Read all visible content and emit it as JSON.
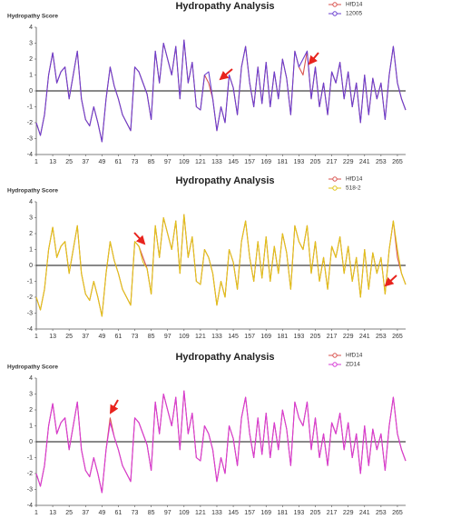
{
  "chart_data": [
    {
      "type": "line",
      "title": "Hydropathy Analysis",
      "y_label": "Hydropathy Score",
      "x": [
        1,
        4,
        7,
        10,
        13,
        16,
        19,
        22,
        25,
        28,
        31,
        34,
        37,
        40,
        43,
        46,
        49,
        52,
        55,
        58,
        61,
        64,
        67,
        70,
        73,
        76,
        79,
        82,
        85,
        88,
        91,
        94,
        97,
        100,
        103,
        106,
        109,
        112,
        115,
        118,
        121,
        124,
        127,
        130,
        133,
        136,
        139,
        142,
        145,
        148,
        151,
        154,
        157,
        160,
        163,
        166,
        169,
        172,
        175,
        178,
        181,
        184,
        187,
        190,
        193,
        196,
        199,
        202,
        205,
        208,
        211,
        214,
        217,
        220,
        223,
        226,
        229,
        232,
        235,
        238,
        241,
        244,
        247,
        250,
        253,
        256,
        259,
        262,
        265,
        268,
        271
      ],
      "xlim": [
        1,
        271
      ],
      "xticks": [
        1,
        13,
        25,
        37,
        49,
        61,
        73,
        85,
        97,
        109,
        121,
        133,
        145,
        157,
        169,
        181,
        193,
        205,
        217,
        229,
        241,
        253,
        265
      ],
      "ylim": [
        -4,
        4
      ],
      "yticks": [
        -4,
        -3,
        -2,
        -1,
        0,
        1,
        2,
        3,
        4
      ],
      "series": [
        {
          "name": "HfD14",
          "color": "#d9534f",
          "values": [
            -2,
            -2.8,
            -1.5,
            1,
            2.4,
            0.5,
            1.2,
            1.5,
            -0.5,
            1,
            2.5,
            -0.5,
            -1.8,
            -2.2,
            -1,
            -2,
            -3.2,
            -0.5,
            1.5,
            0.3,
            -0.5,
            -1.5,
            -2,
            -2.5,
            1.5,
            1.2,
            0.5,
            -0.2,
            -1.8,
            2.5,
            0.5,
            3,
            2,
            1,
            2.8,
            -0.5,
            3.2,
            0.5,
            1.8,
            -1,
            -1.2,
            1,
            0.5,
            -0.5,
            -2.5,
            -1,
            -2,
            1,
            0.2,
            -1.5,
            1.5,
            2.8,
            0.5,
            -1,
            1.5,
            -0.8,
            1.8,
            -1,
            1.2,
            -0.5,
            2,
            0.8,
            -1.5,
            2.5,
            1.5,
            1,
            2.5,
            -0.5,
            1.5,
            -1,
            0.5,
            -1.5,
            1.2,
            0.5,
            1.8,
            -0.5,
            1.2,
            -1,
            0.5,
            -2,
            1,
            -1.5,
            0.8,
            -0.5,
            0.5,
            -1.8,
            1,
            2.8,
            0.5,
            -0.5,
            -1.2
          ]
        },
        {
          "name": "12005",
          "color": "#6a3fd0",
          "values": [
            -2,
            -2.8,
            -1.5,
            1,
            2.4,
            0.5,
            1.2,
            1.5,
            -0.5,
            1,
            2.5,
            -0.5,
            -1.8,
            -2.2,
            -1,
            -2,
            -3.2,
            -0.5,
            1.5,
            0.3,
            -0.5,
            -1.5,
            -2,
            -2.5,
            1.5,
            1.2,
            0.5,
            -0.2,
            -1.8,
            2.5,
            0.5,
            3,
            2,
            1,
            2.8,
            -0.5,
            3.2,
            0.5,
            1.8,
            -1,
            -1.2,
            1,
            1.2,
            -0.5,
            -2.5,
            -1,
            -2,
            1,
            0.2,
            -1.5,
            1.5,
            2.8,
            0.5,
            -1,
            1.5,
            -0.8,
            1.8,
            -1,
            1.2,
            -0.5,
            2,
            0.8,
            -1.5,
            2.5,
            1.5,
            2,
            2.5,
            -0.5,
            1.5,
            -1,
            0.5,
            -1.5,
            1.2,
            0.5,
            1.8,
            -0.5,
            1.2,
            -1,
            0.5,
            -2,
            1,
            -1.5,
            0.8,
            -0.5,
            0.5,
            -1.8,
            1,
            2.8,
            0.5,
            -0.5,
            -1.2
          ]
        }
      ]
    },
    {
      "type": "line",
      "title": "Hydropathy Analysis",
      "y_label": "Hydropathy Score",
      "x": [
        1,
        4,
        7,
        10,
        13,
        16,
        19,
        22,
        25,
        28,
        31,
        34,
        37,
        40,
        43,
        46,
        49,
        52,
        55,
        58,
        61,
        64,
        67,
        70,
        73,
        76,
        79,
        82,
        85,
        88,
        91,
        94,
        97,
        100,
        103,
        106,
        109,
        112,
        115,
        118,
        121,
        124,
        127,
        130,
        133,
        136,
        139,
        142,
        145,
        148,
        151,
        154,
        157,
        160,
        163,
        166,
        169,
        172,
        175,
        178,
        181,
        184,
        187,
        190,
        193,
        196,
        199,
        202,
        205,
        208,
        211,
        214,
        217,
        220,
        223,
        226,
        229,
        232,
        235,
        238,
        241,
        244,
        247,
        250,
        253,
        256,
        259,
        262,
        265,
        268,
        271
      ],
      "xlim": [
        1,
        271
      ],
      "xticks": [
        1,
        13,
        25,
        37,
        49,
        61,
        73,
        85,
        97,
        109,
        121,
        133,
        145,
        157,
        169,
        181,
        193,
        205,
        217,
        229,
        241,
        253,
        265
      ],
      "ylim": [
        -4,
        4
      ],
      "yticks": [
        -4,
        -3,
        -2,
        -1,
        0,
        1,
        2,
        3,
        4
      ],
      "series": [
        {
          "name": "HfD14",
          "color": "#d9534f",
          "values": [
            -2,
            -2.8,
            -1.5,
            1,
            2.4,
            0.5,
            1.2,
            1.5,
            -0.5,
            1,
            2.5,
            -0.5,
            -1.8,
            -2.2,
            -1,
            -2,
            -3.2,
            -0.5,
            1.5,
            0.3,
            -0.5,
            -1.5,
            -2,
            -2.5,
            1.5,
            1.2,
            0.5,
            -0.2,
            -1.8,
            2.5,
            0.5,
            3,
            2,
            1,
            2.8,
            -0.5,
            3.2,
            0.5,
            1.8,
            -1,
            -1.2,
            1,
            0.5,
            -0.5,
            -2.5,
            -1,
            -2,
            1,
            0.2,
            -1.5,
            1.5,
            2.8,
            0.5,
            -1,
            1.5,
            -0.8,
            1.8,
            -1,
            1.2,
            -0.5,
            2,
            0.8,
            -1.5,
            2.5,
            1.5,
            1,
            2.5,
            -0.5,
            1.5,
            -1,
            0.5,
            -1.5,
            1.2,
            0.5,
            1.8,
            -0.5,
            1.2,
            -1,
            0.5,
            -2,
            1,
            -1.5,
            0.8,
            -0.5,
            0.5,
            -1.8,
            1,
            2.8,
            0.5,
            -0.5,
            -1.2
          ]
        },
        {
          "name": "518-2",
          "color": "#e0c418",
          "values": [
            -2,
            -2.8,
            -1.5,
            1,
            2.4,
            0.5,
            1.2,
            1.5,
            -0.5,
            1,
            2.5,
            -0.5,
            -1.8,
            -2.2,
            -1,
            -2,
            -3.2,
            -0.5,
            1.5,
            0.3,
            -0.5,
            -1.5,
            -2,
            -2.5,
            1.5,
            1.2,
            0.2,
            -0.2,
            -1.8,
            2.5,
            0.5,
            3,
            2,
            1,
            2.8,
            -0.5,
            3.2,
            0.5,
            1.8,
            -1,
            -1.2,
            1,
            0.5,
            -0.5,
            -2.5,
            -1,
            -2,
            1,
            0.2,
            -1.5,
            1.5,
            2.8,
            0.5,
            -1,
            1.5,
            -0.8,
            1.8,
            -1,
            1.2,
            -0.5,
            2,
            0.8,
            -1.5,
            2.5,
            1.5,
            1,
            2.5,
            -0.5,
            1.5,
            -1,
            0.5,
            -1.5,
            1.2,
            0.5,
            1.8,
            -0.5,
            1.2,
            -1,
            0.5,
            -2,
            1,
            -1.5,
            0.8,
            -0.5,
            0.5,
            -1.8,
            1,
            2.8,
            1,
            -0.5,
            -1.2
          ]
        }
      ]
    },
    {
      "type": "line",
      "title": "Hydropathy Analysis",
      "y_label": "Hydropathy Score",
      "x": [
        1,
        4,
        7,
        10,
        13,
        16,
        19,
        22,
        25,
        28,
        31,
        34,
        37,
        40,
        43,
        46,
        49,
        52,
        55,
        58,
        61,
        64,
        67,
        70,
        73,
        76,
        79,
        82,
        85,
        88,
        91,
        94,
        97,
        100,
        103,
        106,
        109,
        112,
        115,
        118,
        121,
        124,
        127,
        130,
        133,
        136,
        139,
        142,
        145,
        148,
        151,
        154,
        157,
        160,
        163,
        166,
        169,
        172,
        175,
        178,
        181,
        184,
        187,
        190,
        193,
        196,
        199,
        202,
        205,
        208,
        211,
        214,
        217,
        220,
        223,
        226,
        229,
        232,
        235,
        238,
        241,
        244,
        247,
        250,
        253,
        256,
        259,
        262,
        265,
        268,
        271
      ],
      "xlim": [
        1,
        271
      ],
      "xticks": [
        1,
        13,
        25,
        37,
        49,
        61,
        73,
        85,
        97,
        109,
        121,
        133,
        145,
        157,
        169,
        181,
        193,
        205,
        217,
        229,
        241,
        253,
        265
      ],
      "ylim": [
        -4,
        4
      ],
      "yticks": [
        -4,
        -3,
        -2,
        -1,
        0,
        1,
        2,
        3,
        4
      ],
      "series": [
        {
          "name": "HfD14",
          "color": "#d9534f",
          "values": [
            -2,
            -2.8,
            -1.5,
            1,
            2.4,
            0.5,
            1.2,
            1.5,
            -0.5,
            1,
            2.5,
            -0.5,
            -1.8,
            -2.2,
            -1,
            -2,
            -3.2,
            -0.5,
            1.5,
            0.3,
            -0.5,
            -1.5,
            -2,
            -2.5,
            1.5,
            1.2,
            0.5,
            -0.2,
            -1.8,
            2.5,
            0.5,
            3,
            2,
            1,
            2.8,
            -0.5,
            3.2,
            0.5,
            1.8,
            -1,
            -1.2,
            1,
            0.5,
            -0.5,
            -2.5,
            -1,
            -2,
            1,
            0.2,
            -1.5,
            1.5,
            2.8,
            0.5,
            -1,
            1.5,
            -0.8,
            1.8,
            -1,
            1.2,
            -0.5,
            2,
            0.8,
            -1.5,
            2.5,
            1.5,
            1,
            2.5,
            -0.5,
            1.5,
            -1,
            0.5,
            -1.5,
            1.2,
            0.5,
            1.8,
            -0.5,
            1.2,
            -1,
            0.5,
            -2,
            1,
            -1.5,
            0.8,
            -0.5,
            0.5,
            -1.8,
            1,
            2.8,
            0.5,
            -0.5,
            -1.2
          ]
        },
        {
          "name": "ZD14",
          "color": "#d63bd6",
          "values": [
            -2,
            -2.8,
            -1.5,
            1,
            2.4,
            0.5,
            1.2,
            1.5,
            -0.5,
            1,
            2.5,
            -0.5,
            -1.8,
            -2.2,
            -1,
            -2,
            -3.2,
            -0.5,
            1.2,
            0.3,
            -0.5,
            -1.5,
            -2,
            -2.5,
            1.5,
            1.2,
            0.5,
            -0.2,
            -1.8,
            2.5,
            0.5,
            3,
            2,
            1,
            2.8,
            -0.5,
            3.2,
            0.5,
            1.8,
            -1,
            -1.2,
            1,
            0.5,
            -0.5,
            -2.5,
            -1,
            -2,
            1,
            0.2,
            -1.5,
            1.5,
            2.8,
            0.5,
            -1,
            1.5,
            -0.8,
            1.8,
            -1,
            1.2,
            -0.5,
            2,
            0.8,
            -1.5,
            2.5,
            1.5,
            1,
            2.5,
            -0.5,
            1.5,
            -1,
            0.5,
            -1.5,
            1.2,
            0.5,
            1.8,
            -0.5,
            1.2,
            -1,
            0.5,
            -2,
            1,
            -1.5,
            0.8,
            -0.5,
            0.5,
            -1.8,
            1,
            2.8,
            0.5,
            -0.5,
            -1.2
          ]
        }
      ]
    }
  ]
}
